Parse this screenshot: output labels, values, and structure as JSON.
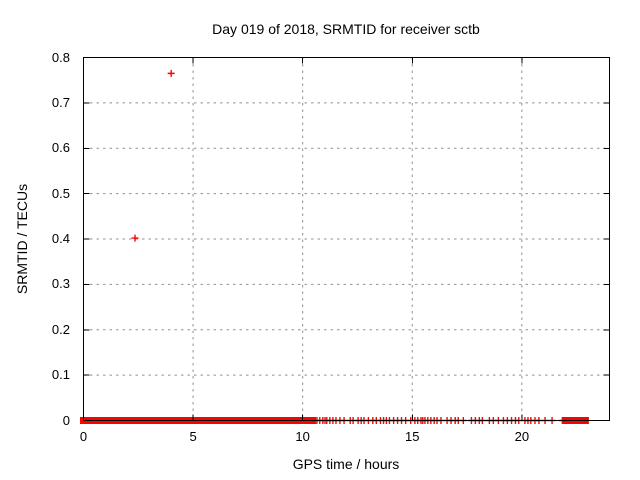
{
  "window": {
    "background": "#ffffff",
    "text_color": "#000000"
  },
  "chart_data": {
    "type": "scatter",
    "title": "Day 019 of 2018, SRMTID for receiver sctb",
    "xlabel": "GPS time / hours",
    "ylabel": "SRMTID / TECUs",
    "xlim": [
      0,
      24
    ],
    "ylim": [
      0,
      0.8
    ],
    "xticks": [
      0,
      5,
      10,
      15,
      20
    ],
    "yticks": [
      0,
      0.1,
      0.2,
      0.3,
      0.4,
      0.5,
      0.6,
      0.7,
      0.8
    ],
    "xtick_labels": [
      "0",
      "5",
      "10",
      "15",
      "20"
    ],
    "ytick_labels": [
      "0",
      "0.1",
      "0.2",
      "0.3",
      "0.4",
      "0.5",
      "0.6",
      "0.7",
      "0.8"
    ],
    "grid": true,
    "grid_style": "dotted",
    "grid_color": "#909090",
    "border_color": "#000000",
    "legend": "none",
    "marker": "plus",
    "marker_color": "#ff0000",
    "series": [
      {
        "name": "SRMTID",
        "outlier_points": [
          [
            2.35,
            0.402
          ],
          [
            4.0,
            0.765
          ]
        ],
        "baseline_value": 0,
        "baseline_dense_runs": [
          [
            0.0,
            10.45
          ],
          [
            22.0,
            22.9
          ]
        ],
        "baseline_scatter_x": [
          10.55,
          10.65,
          10.78,
          10.92,
          11.02,
          11.1,
          11.24,
          11.38,
          11.52,
          11.7,
          11.89,
          12.17,
          12.3,
          12.53,
          12.67,
          12.8,
          13.0,
          13.2,
          13.36,
          13.55,
          13.69,
          13.82,
          13.96,
          14.15,
          14.33,
          14.51,
          14.7,
          14.93,
          15.12,
          15.25,
          15.4,
          15.48,
          15.58,
          15.71,
          15.85,
          16.0,
          16.13,
          16.31,
          16.59,
          16.77,
          16.96,
          17.1,
          17.33,
          17.7,
          17.88,
          18.06,
          18.2,
          18.52,
          18.7,
          18.93,
          19.16,
          19.34,
          19.53,
          19.71,
          19.86,
          20.14,
          20.28,
          20.41,
          20.6,
          20.78,
          21.06,
          21.38,
          21.85,
          21.94
        ]
      }
    ]
  }
}
